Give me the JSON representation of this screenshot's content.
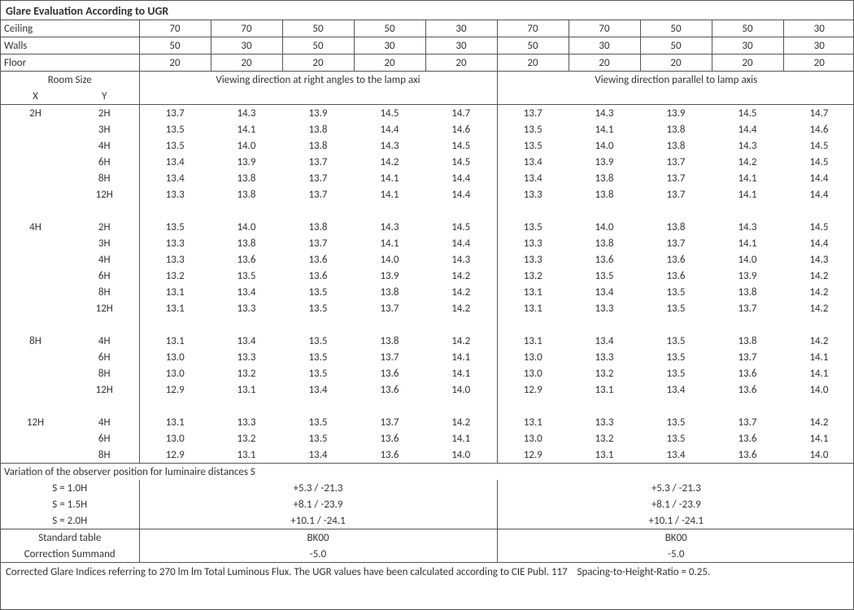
{
  "title": "Glare Evaluation According to UGR",
  "header_rows": [
    {
      "label": "Ceiling",
      "left": [
        "70",
        "70",
        "50",
        "50",
        "30"
      ],
      "right": [
        "70",
        "70",
        "50",
        "50",
        "30"
      ]
    },
    {
      "label": "Walls",
      "left": [
        "50",
        "30",
        "50",
        "30",
        "30"
      ],
      "right": [
        "50",
        "30",
        "50",
        "30",
        "30"
      ]
    },
    {
      "label": "Floor",
      "left": [
        "20",
        "20",
        "20",
        "20",
        "20"
      ],
      "right": [
        "20",
        "20",
        "20",
        "20",
        "20"
      ]
    }
  ],
  "room_size_header": {
    "label": "Room Size",
    "x": "X",
    "y": "Y"
  },
  "direction_labels": {
    "left": "Viewing direction at right angles to the lamp axi",
    "right": "Viewing direction parallel to lamp axis"
  },
  "groups": [
    {
      "x": "2H",
      "rows": [
        {
          "y": "2H",
          "l": [
            "13.7",
            "14.3",
            "13.9",
            "14.5",
            "14.7"
          ],
          "r": [
            "13.7",
            "14.3",
            "13.9",
            "14.5",
            "14.7"
          ]
        },
        {
          "y": "3H",
          "l": [
            "13.5",
            "14.1",
            "13.8",
            "14.4",
            "14.6"
          ],
          "r": [
            "13.5",
            "14.1",
            "13.8",
            "14.4",
            "14.6"
          ]
        },
        {
          "y": "4H",
          "l": [
            "13.5",
            "14.0",
            "13.8",
            "14.3",
            "14.5"
          ],
          "r": [
            "13.5",
            "14.0",
            "13.8",
            "14.3",
            "14.5"
          ]
        },
        {
          "y": "6H",
          "l": [
            "13.4",
            "13.9",
            "13.7",
            "14.2",
            "14.5"
          ],
          "r": [
            "13.4",
            "13.9",
            "13.7",
            "14.2",
            "14.5"
          ]
        },
        {
          "y": "8H",
          "l": [
            "13.4",
            "13.8",
            "13.7",
            "14.1",
            "14.4"
          ],
          "r": [
            "13.4",
            "13.8",
            "13.7",
            "14.1",
            "14.4"
          ]
        },
        {
          "y": "12H",
          "l": [
            "13.3",
            "13.8",
            "13.7",
            "14.1",
            "14.4"
          ],
          "r": [
            "13.3",
            "13.8",
            "13.7",
            "14.1",
            "14.4"
          ]
        }
      ]
    },
    {
      "x": "4H",
      "rows": [
        {
          "y": "2H",
          "l": [
            "13.5",
            "14.0",
            "13.8",
            "14.3",
            "14.5"
          ],
          "r": [
            "13.5",
            "14.0",
            "13.8",
            "14.3",
            "14.5"
          ]
        },
        {
          "y": "3H",
          "l": [
            "13.3",
            "13.8",
            "13.7",
            "14.1",
            "14.4"
          ],
          "r": [
            "13.3",
            "13.8",
            "13.7",
            "14.1",
            "14.4"
          ]
        },
        {
          "y": "4H",
          "l": [
            "13.3",
            "13.6",
            "13.6",
            "14.0",
            "14.3"
          ],
          "r": [
            "13.3",
            "13.6",
            "13.6",
            "14.0",
            "14.3"
          ]
        },
        {
          "y": "6H",
          "l": [
            "13.2",
            "13.5",
            "13.6",
            "13.9",
            "14.2"
          ],
          "r": [
            "13.2",
            "13.5",
            "13.6",
            "13.9",
            "14.2"
          ]
        },
        {
          "y": "8H",
          "l": [
            "13.1",
            "13.4",
            "13.5",
            "13.8",
            "14.2"
          ],
          "r": [
            "13.1",
            "13.4",
            "13.5",
            "13.8",
            "14.2"
          ]
        },
        {
          "y": "12H",
          "l": [
            "13.1",
            "13.3",
            "13.5",
            "13.7",
            "14.2"
          ],
          "r": [
            "13.1",
            "13.3",
            "13.5",
            "13.7",
            "14.2"
          ]
        }
      ]
    },
    {
      "x": "8H",
      "rows": [
        {
          "y": "4H",
          "l": [
            "13.1",
            "13.4",
            "13.5",
            "13.8",
            "14.2"
          ],
          "r": [
            "13.1",
            "13.4",
            "13.5",
            "13.8",
            "14.2"
          ]
        },
        {
          "y": "6H",
          "l": [
            "13.0",
            "13.3",
            "13.5",
            "13.7",
            "14.1"
          ],
          "r": [
            "13.0",
            "13.3",
            "13.5",
            "13.7",
            "14.1"
          ]
        },
        {
          "y": "8H",
          "l": [
            "13.0",
            "13.2",
            "13.5",
            "13.6",
            "14.1"
          ],
          "r": [
            "13.0",
            "13.2",
            "13.5",
            "13.6",
            "14.1"
          ]
        },
        {
          "y": "12H",
          "l": [
            "12.9",
            "13.1",
            "13.4",
            "13.6",
            "14.0"
          ],
          "r": [
            "12.9",
            "13.1",
            "13.4",
            "13.6",
            "14.0"
          ]
        }
      ]
    },
    {
      "x": "12H",
      "rows": [
        {
          "y": "4H",
          "l": [
            "13.1",
            "13.3",
            "13.5",
            "13.7",
            "14.2"
          ],
          "r": [
            "13.1",
            "13.3",
            "13.5",
            "13.7",
            "14.2"
          ]
        },
        {
          "y": "6H",
          "l": [
            "13.0",
            "13.2",
            "13.5",
            "13.6",
            "14.1"
          ],
          "r": [
            "13.0",
            "13.2",
            "13.5",
            "13.6",
            "14.1"
          ]
        },
        {
          "y": "8H",
          "l": [
            "12.9",
            "13.1",
            "13.4",
            "13.6",
            "14.0"
          ],
          "r": [
            "12.9",
            "13.1",
            "13.4",
            "13.6",
            "14.0"
          ]
        }
      ]
    }
  ],
  "variation": {
    "title": "Variation of the observer position for luminaire distances S",
    "rows": [
      {
        "label": "S = 1.0H",
        "l": "+5.3 / -21.3",
        "r": "+5.3 / -21.3"
      },
      {
        "label": "S = 1.5H",
        "l": "+8.1 / -23.9",
        "r": "+8.1 / -23.9"
      },
      {
        "label": "S = 2.0H",
        "l": "+10.1 / -24.1",
        "r": "+10.1 / -24.1"
      }
    ]
  },
  "standard": {
    "label1": "Standard table",
    "l1": "BK00",
    "r1": "BK00",
    "label2": "Correction Summand",
    "l2": "-5.0",
    "r2": "-5.0"
  },
  "footnote": "Corrected Glare Indices referring to 270 lm lm Total Luminous Flux. The UGR values have been calculated according to CIE Publ. 117    Spacing-to-Height-Ratio = 0.25."
}
